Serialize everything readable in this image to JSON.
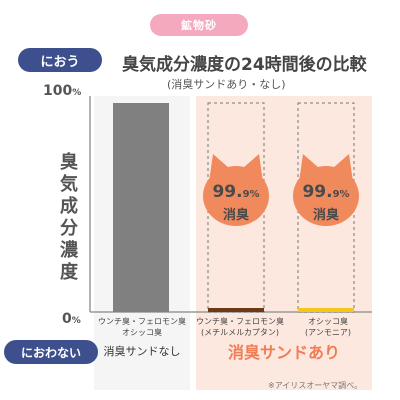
{
  "header": {
    "category_pill": "鉱物砂",
    "title": "臭気成分濃度の24時間後の比較",
    "subtitle": "(消臭サンドあり・なし)",
    "smell_tag_top": "におう",
    "smell_tag_bottom": "におわない"
  },
  "axis": {
    "y_label": "臭気成分濃度",
    "tick_top_value": "100",
    "tick_bottom_value": "0",
    "tick_unit": "%"
  },
  "groups": {
    "without": "消臭サンドなし",
    "with": "消臭サンドあり"
  },
  "categories": [
    {
      "line1": "ウンチ臭・フェロモン臭",
      "line2": "オシッコ臭"
    },
    {
      "line1": "ウンチ臭・フェロモン臭",
      "line2": "(メチルメルカプタン)"
    },
    {
      "line1": "オシッコ臭",
      "line2": "(アンモニア)"
    }
  ],
  "badges": [
    {
      "value": "99.",
      "decimal": "9",
      "unit": "%",
      "label": "消臭"
    },
    {
      "value": "99.",
      "decimal": "9",
      "unit": "%",
      "label": "消臭"
    }
  ],
  "note": "※アイリスオーヤマ調べ。",
  "colors": {
    "pill": "#f5a9bf",
    "tag": "#3d4f8c",
    "bar_without": "#808080",
    "bar_methyl": "#6b3a14",
    "bar_ammonia": "#f5c518",
    "badge": "#f08a5d",
    "accent_text": "#ef7d55"
  },
  "chart_data": {
    "type": "bar",
    "title": "臭気成分濃度の24時間後の比較",
    "subtitle": "(消臭サンドあり・なし)",
    "ylabel": "臭気成分濃度",
    "ylim": [
      0,
      100
    ],
    "y_ticks": [
      "0%",
      "100%"
    ],
    "categories": [
      "ウンチ臭・フェロモン臭 オシッコ臭",
      "ウンチ臭・フェロモン臭 (メチルメルカプタン)",
      "オシッコ臭 (アンモニア)"
    ],
    "series": [
      {
        "name": "消臭サンドなし",
        "values": [
          100,
          null,
          null
        ]
      },
      {
        "name": "消臭サンドあり",
        "values": [
          null,
          0.1,
          0.1
        ]
      }
    ],
    "annotations": [
      "99.9%消臭",
      "99.9%消臭"
    ],
    "grid": false
  }
}
